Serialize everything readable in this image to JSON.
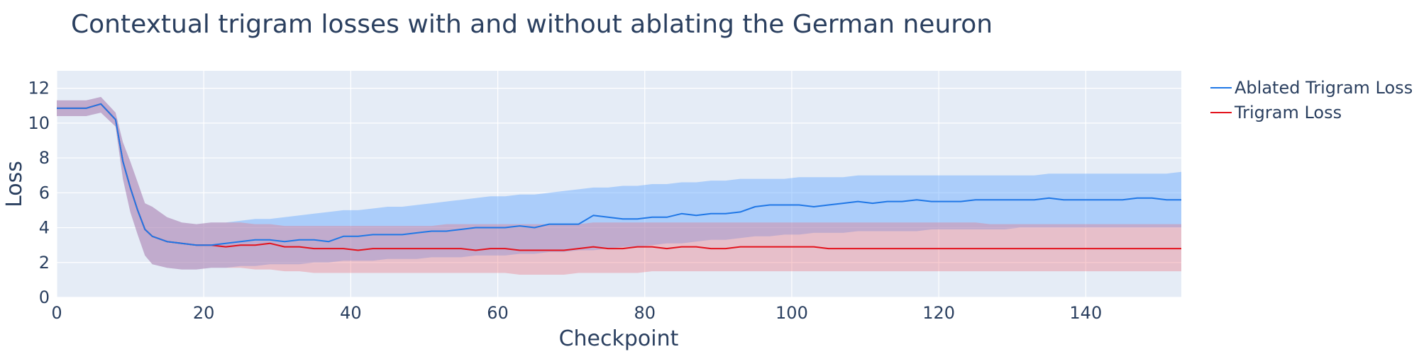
{
  "chart_data": {
    "type": "line",
    "title": "Contextual trigram losses with and without ablating the German neuron",
    "xlabel": "Checkpoint",
    "ylabel": "Loss",
    "xlim": [
      0,
      153
    ],
    "ylim": [
      0,
      13
    ],
    "x_ticks": [
      0,
      20,
      40,
      60,
      80,
      100,
      120,
      140
    ],
    "y_ticks": [
      0,
      2,
      4,
      6,
      8,
      10,
      12
    ],
    "grid": true,
    "legend_position": "top-right",
    "x": [
      0,
      4,
      6,
      8,
      9,
      10,
      11,
      12,
      13,
      15,
      17,
      19,
      21,
      23,
      25,
      27,
      29,
      31,
      33,
      35,
      37,
      39,
      41,
      43,
      45,
      47,
      49,
      51,
      53,
      55,
      57,
      59,
      61,
      63,
      65,
      67,
      69,
      71,
      73,
      75,
      77,
      79,
      81,
      83,
      85,
      87,
      89,
      91,
      93,
      95,
      97,
      99,
      101,
      103,
      105,
      107,
      109,
      111,
      113,
      115,
      117,
      119,
      121,
      123,
      125,
      127,
      129,
      131,
      133,
      135,
      137,
      139,
      141,
      143,
      145,
      147,
      149,
      151,
      153
    ],
    "series": [
      {
        "name": "Ablated Trigram Loss",
        "color": "#1f77e6",
        "band_color": "rgba(99,168,255,0.45)",
        "values": [
          10.85,
          10.85,
          11.1,
          10.2,
          7.8,
          6.3,
          5.0,
          3.9,
          3.5,
          3.2,
          3.1,
          3.0,
          3.0,
          3.1,
          3.2,
          3.3,
          3.3,
          3.2,
          3.3,
          3.3,
          3.2,
          3.5,
          3.5,
          3.6,
          3.6,
          3.6,
          3.7,
          3.8,
          3.8,
          3.9,
          4.0,
          4.0,
          4.0,
          4.1,
          4.0,
          4.2,
          4.2,
          4.2,
          4.7,
          4.6,
          4.5,
          4.5,
          4.6,
          4.6,
          4.8,
          4.7,
          4.8,
          4.8,
          4.9,
          5.2,
          5.3,
          5.3,
          5.3,
          5.2,
          5.3,
          5.4,
          5.5,
          5.4,
          5.5,
          5.5,
          5.6,
          5.5,
          5.5,
          5.5,
          5.6,
          5.6,
          5.6,
          5.6,
          5.6,
          5.7,
          5.6,
          5.6,
          5.6,
          5.6,
          5.6,
          5.7,
          5.7,
          5.6,
          5.6
        ],
        "upper": [
          11.3,
          11.3,
          11.5,
          10.6,
          8.9,
          7.8,
          6.6,
          5.4,
          5.2,
          4.6,
          4.3,
          4.2,
          4.3,
          4.3,
          4.4,
          4.5,
          4.5,
          4.6,
          4.7,
          4.8,
          4.9,
          5.0,
          5.0,
          5.1,
          5.2,
          5.2,
          5.3,
          5.4,
          5.5,
          5.6,
          5.7,
          5.8,
          5.8,
          5.9,
          5.9,
          6.0,
          6.1,
          6.2,
          6.3,
          6.3,
          6.4,
          6.4,
          6.5,
          6.5,
          6.6,
          6.6,
          6.7,
          6.7,
          6.8,
          6.8,
          6.8,
          6.8,
          6.9,
          6.9,
          6.9,
          6.9,
          7.0,
          7.0,
          7.0,
          7.0,
          7.0,
          7.0,
          7.0,
          7.0,
          7.0,
          7.0,
          7.0,
          7.0,
          7.0,
          7.1,
          7.1,
          7.1,
          7.1,
          7.1,
          7.1,
          7.1,
          7.1,
          7.1,
          7.2
        ],
        "lower": [
          10.4,
          10.4,
          10.6,
          9.8,
          6.8,
          4.9,
          3.6,
          2.4,
          1.9,
          1.7,
          1.6,
          1.6,
          1.7,
          1.7,
          1.8,
          1.8,
          1.9,
          1.9,
          1.9,
          2.0,
          2.0,
          2.1,
          2.1,
          2.1,
          2.2,
          2.2,
          2.2,
          2.3,
          2.3,
          2.3,
          2.4,
          2.4,
          2.4,
          2.5,
          2.5,
          2.6,
          2.6,
          2.7,
          2.7,
          2.8,
          2.9,
          2.9,
          3.0,
          3.1,
          3.1,
          3.2,
          3.3,
          3.3,
          3.4,
          3.5,
          3.5,
          3.6,
          3.6,
          3.7,
          3.7,
          3.7,
          3.8,
          3.8,
          3.8,
          3.8,
          3.8,
          3.9,
          3.9,
          3.9,
          3.9,
          3.9,
          3.9,
          4.0,
          4.0,
          4.0,
          4.0,
          4.0,
          4.0,
          4.0,
          4.0,
          4.0,
          4.0,
          4.0,
          4.0
        ]
      },
      {
        "name": "Trigram Loss",
        "color": "#e3121c",
        "band_color": "rgba(235,110,120,0.35)",
        "values": [
          10.85,
          10.85,
          11.1,
          10.2,
          7.8,
          6.3,
          5.0,
          3.9,
          3.5,
          3.2,
          3.1,
          3.0,
          3.0,
          2.9,
          3.0,
          3.0,
          3.1,
          2.9,
          2.9,
          2.8,
          2.8,
          2.8,
          2.7,
          2.8,
          2.8,
          2.8,
          2.8,
          2.8,
          2.8,
          2.8,
          2.7,
          2.8,
          2.8,
          2.7,
          2.7,
          2.7,
          2.7,
          2.8,
          2.9,
          2.8,
          2.8,
          2.9,
          2.9,
          2.8,
          2.9,
          2.9,
          2.8,
          2.8,
          2.9,
          2.9,
          2.9,
          2.9,
          2.9,
          2.9,
          2.8,
          2.8,
          2.8,
          2.8,
          2.8,
          2.8,
          2.8,
          2.8,
          2.8,
          2.8,
          2.8,
          2.8,
          2.8,
          2.8,
          2.8,
          2.8,
          2.8,
          2.8,
          2.8,
          2.8,
          2.8,
          2.8,
          2.8,
          2.8,
          2.8
        ],
        "upper": [
          11.3,
          11.3,
          11.5,
          10.6,
          8.9,
          7.8,
          6.6,
          5.4,
          5.2,
          4.6,
          4.3,
          4.2,
          4.3,
          4.3,
          4.3,
          4.2,
          4.2,
          4.1,
          4.1,
          4.1,
          4.1,
          4.1,
          4.1,
          4.1,
          4.1,
          4.1,
          4.1,
          4.1,
          4.2,
          4.2,
          4.2,
          4.2,
          4.2,
          4.2,
          4.2,
          4.2,
          4.2,
          4.2,
          4.3,
          4.3,
          4.3,
          4.3,
          4.3,
          4.3,
          4.3,
          4.3,
          4.3,
          4.3,
          4.3,
          4.3,
          4.3,
          4.3,
          4.3,
          4.3,
          4.3,
          4.3,
          4.3,
          4.3,
          4.3,
          4.3,
          4.3,
          4.3,
          4.3,
          4.3,
          4.3,
          4.2,
          4.2,
          4.2,
          4.2,
          4.2,
          4.2,
          4.2,
          4.2,
          4.2,
          4.2,
          4.2,
          4.2,
          4.2,
          4.2
        ],
        "lower": [
          10.4,
          10.4,
          10.6,
          9.8,
          6.8,
          4.9,
          3.6,
          2.4,
          1.9,
          1.7,
          1.6,
          1.6,
          1.7,
          1.7,
          1.7,
          1.6,
          1.6,
          1.5,
          1.5,
          1.4,
          1.4,
          1.4,
          1.4,
          1.4,
          1.4,
          1.4,
          1.4,
          1.4,
          1.4,
          1.4,
          1.4,
          1.4,
          1.4,
          1.3,
          1.3,
          1.3,
          1.3,
          1.4,
          1.4,
          1.4,
          1.4,
          1.4,
          1.5,
          1.5,
          1.5,
          1.5,
          1.5,
          1.5,
          1.5,
          1.5,
          1.5,
          1.5,
          1.5,
          1.5,
          1.5,
          1.5,
          1.5,
          1.5,
          1.5,
          1.5,
          1.5,
          1.5,
          1.5,
          1.5,
          1.5,
          1.5,
          1.5,
          1.5,
          1.5,
          1.5,
          1.5,
          1.5,
          1.5,
          1.5,
          1.5,
          1.5,
          1.5,
          1.5,
          1.5
        ]
      }
    ]
  }
}
